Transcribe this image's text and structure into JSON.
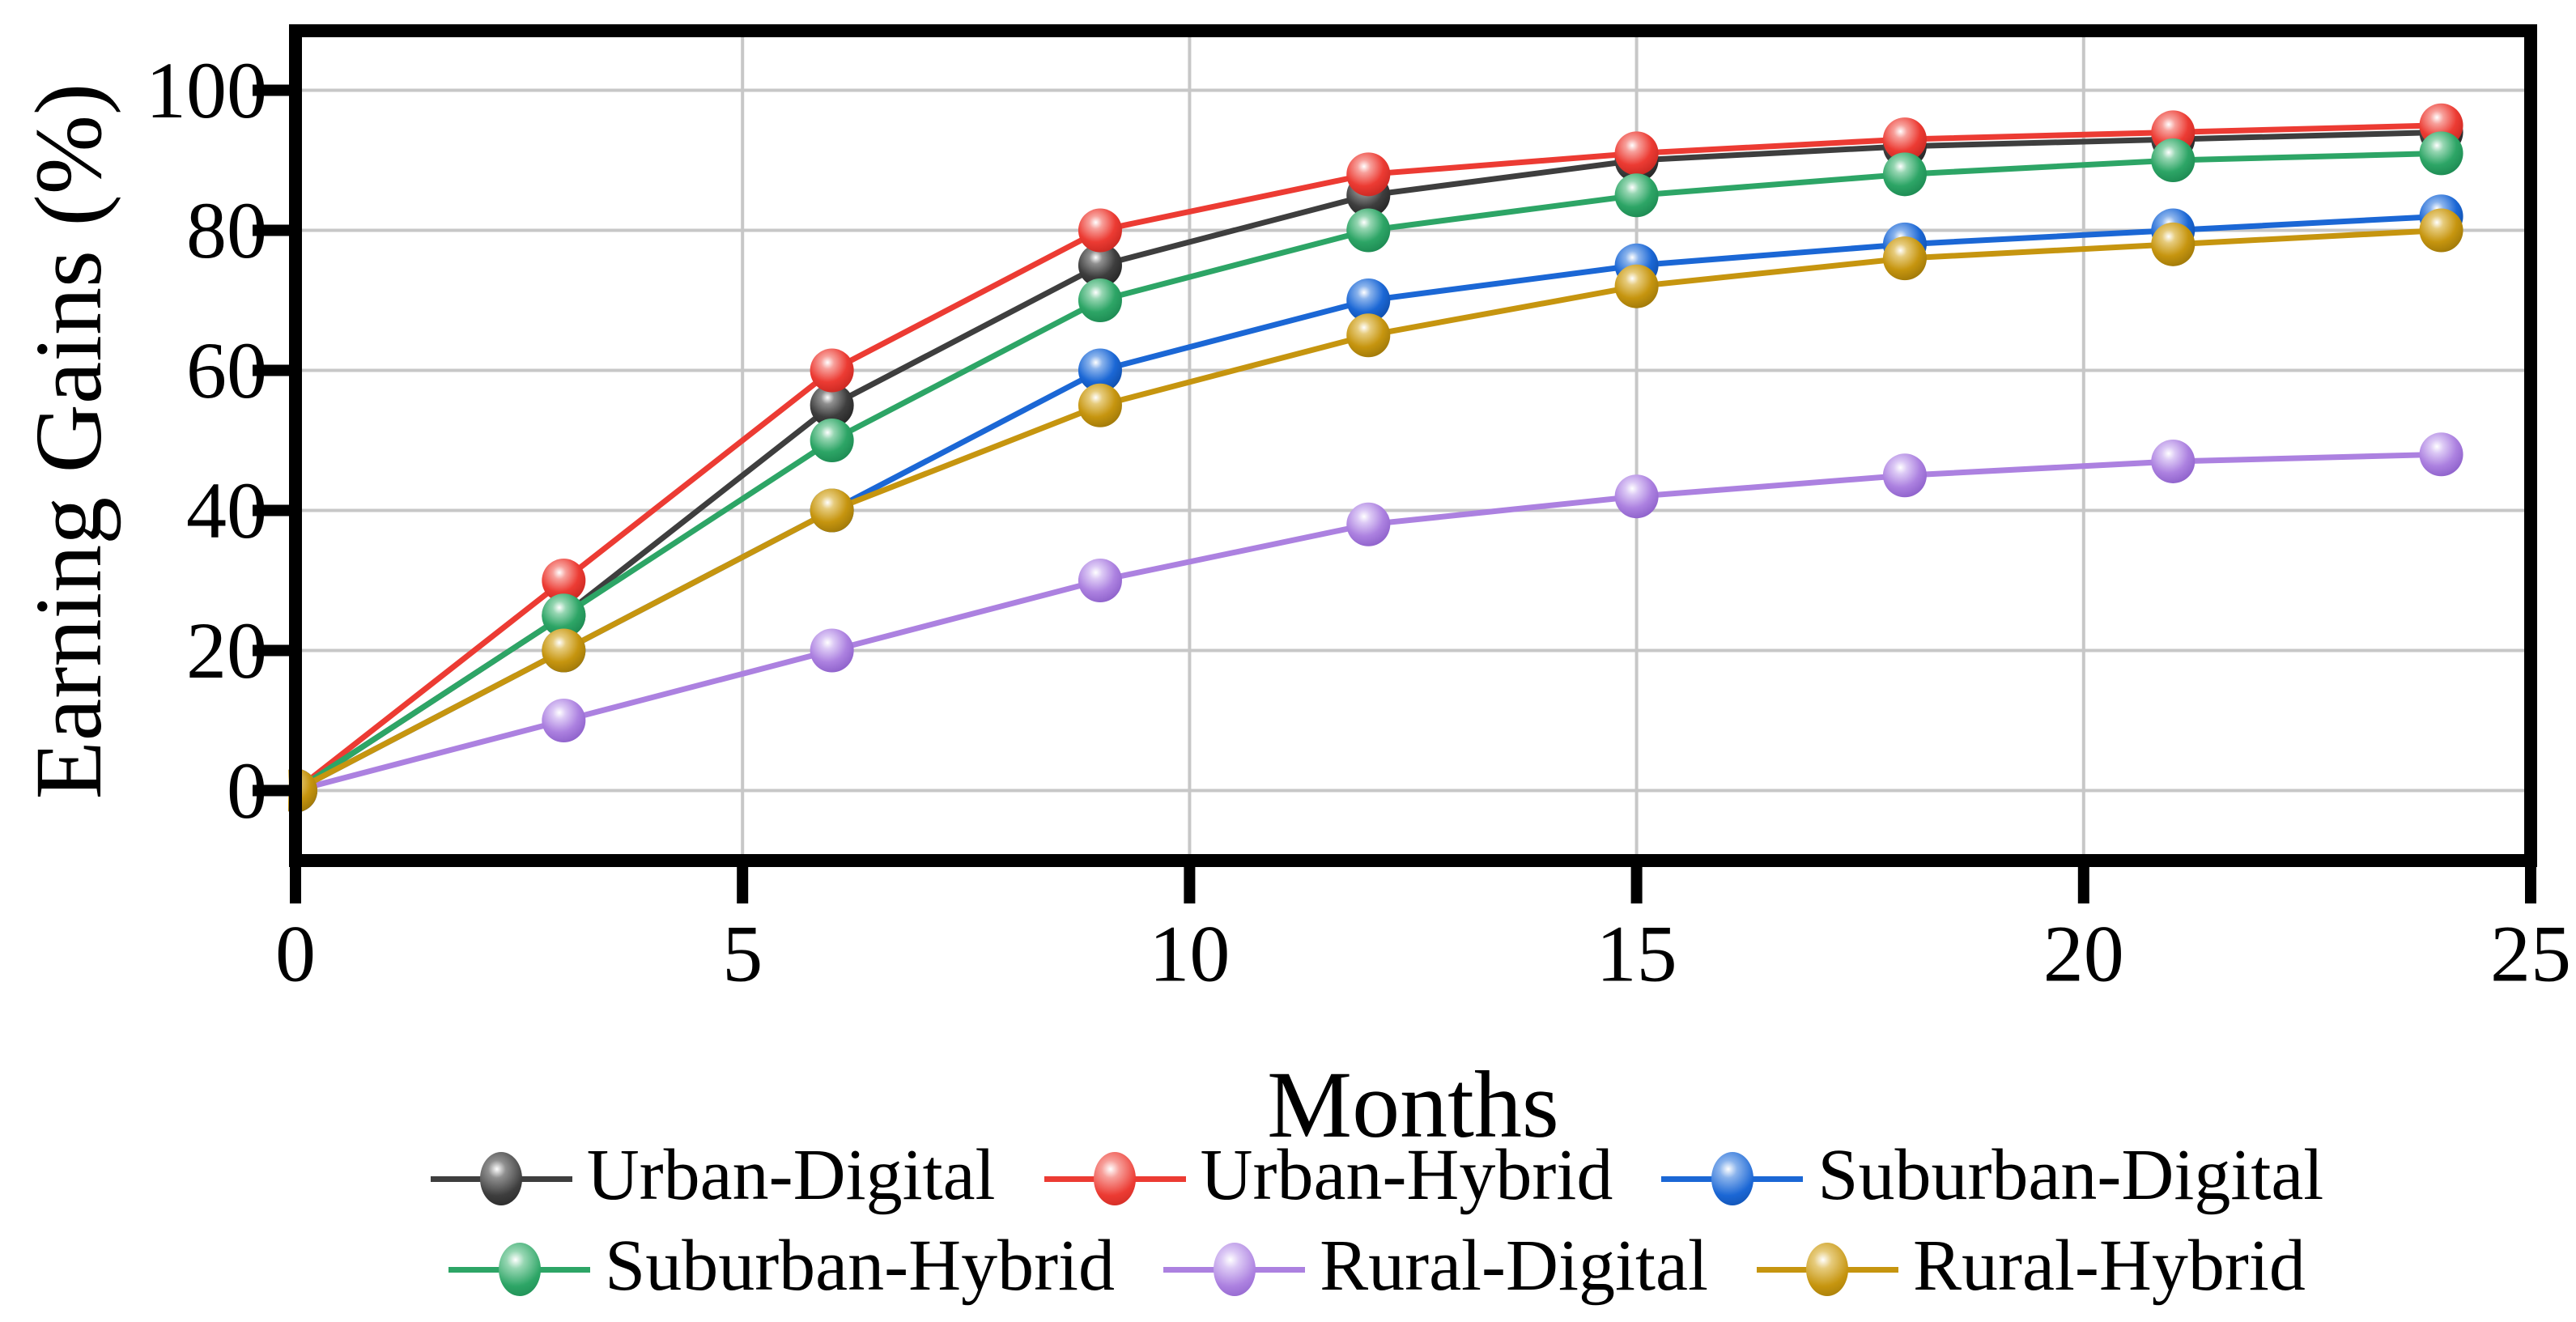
{
  "figure": {
    "background": "#ffffff",
    "grid_color": "#c7c7c7",
    "spine_color": "#000000",
    "tick_color": "#000000"
  },
  "axes": {
    "x_label": "Months",
    "y_label": "Earning Gains (%)",
    "x_ticks": [
      0,
      5,
      10,
      15,
      20,
      25
    ],
    "y_ticks": [
      0,
      20,
      40,
      60,
      80,
      100
    ]
  },
  "chart_data": {
    "type": "line",
    "title": "",
    "xlabel": "Months",
    "ylabel": "Earning Gains (%)",
    "x": [
      0,
      3,
      6,
      9,
      12,
      15,
      18,
      21,
      24
    ],
    "xlim": [
      0,
      25
    ],
    "ylim": [
      -10,
      108.5
    ],
    "grid": true,
    "legend_position": "below",
    "legend_columns": 3,
    "series": [
      {
        "name": "Urban-Digital",
        "color": "#3e3e3e",
        "color_light": "#8f8f8f",
        "color_dark": "#222222",
        "values": [
          0,
          25,
          55,
          75,
          85,
          90,
          92,
          93,
          94
        ]
      },
      {
        "name": "Urban-Hybrid",
        "color": "#ec3b33",
        "color_light": "#f7a09b",
        "color_dark": "#c62620",
        "values": [
          0,
          30,
          60,
          80,
          88,
          91,
          93,
          94,
          95
        ]
      },
      {
        "name": "Suburban-Digital",
        "color": "#1b67d5",
        "color_light": "#8ab3ec",
        "color_dark": "#0e4ba6",
        "values": [
          0,
          20,
          40,
          60,
          70,
          75,
          78,
          80,
          82
        ]
      },
      {
        "name": "Suburban-Hybrid",
        "color": "#2da566",
        "color_light": "#96d6b2",
        "color_dark": "#1b8750",
        "values": [
          0,
          25,
          50,
          70,
          80,
          85,
          88,
          90,
          91
        ]
      },
      {
        "name": "Rural-Digital",
        "color": "#ac81e0",
        "color_light": "#dcc9f5",
        "color_dark": "#8a5dc8",
        "values": [
          0,
          10,
          20,
          30,
          38,
          42,
          45,
          47,
          48
        ]
      },
      {
        "name": "Rural-Hybrid",
        "color": "#c6950f",
        "color_light": "#e6cb7c",
        "color_dark": "#9b7508",
        "values": [
          0,
          20,
          40,
          55,
          65,
          72,
          76,
          78,
          80
        ]
      }
    ]
  }
}
